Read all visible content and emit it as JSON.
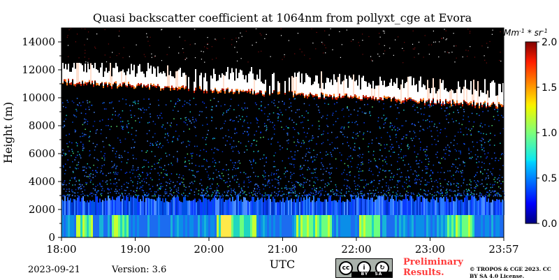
{
  "chart_data": {
    "type": "heatmap",
    "title": "Quasi backscatter coefficient at 1064nm from pollyxt_cge at Evora",
    "xlabel": "UTC",
    "ylabel": "Height (m)",
    "x_ticks": [
      "18:00",
      "19:00",
      "20:00",
      "21:00",
      "22:00",
      "23:00",
      "23:57"
    ],
    "y_ticks": [
      "0",
      "2000",
      "4000",
      "6000",
      "8000",
      "10000",
      "12000",
      "14000"
    ],
    "ylim": [
      0,
      15000
    ],
    "colorbar": {
      "label": "Mm^-1 * sr^-1",
      "ticks": [
        "0.0",
        "0.5",
        "1.0",
        "1.5",
        "2.0"
      ],
      "range": [
        0,
        2
      ],
      "colormap": "jet"
    },
    "features": {
      "boundary_layer_top_m": 1600,
      "aerosol_layer_m": [
        1600,
        3000
      ],
      "cirrus_layer_m": [
        9500,
        12500
      ]
    }
  },
  "footer": {
    "date": "2023-09-21",
    "version": "Version: 3.6",
    "preliminary": "Preliminary Results.",
    "copyright": "© TROPOS & CGE 2023. CC BY SA 4.0 License."
  },
  "license_badge": {
    "cc": "cc",
    "by": "BY",
    "sa": "SA"
  },
  "colors": {
    "background": "#000000",
    "preliminary_text": "#ff3b3b"
  }
}
